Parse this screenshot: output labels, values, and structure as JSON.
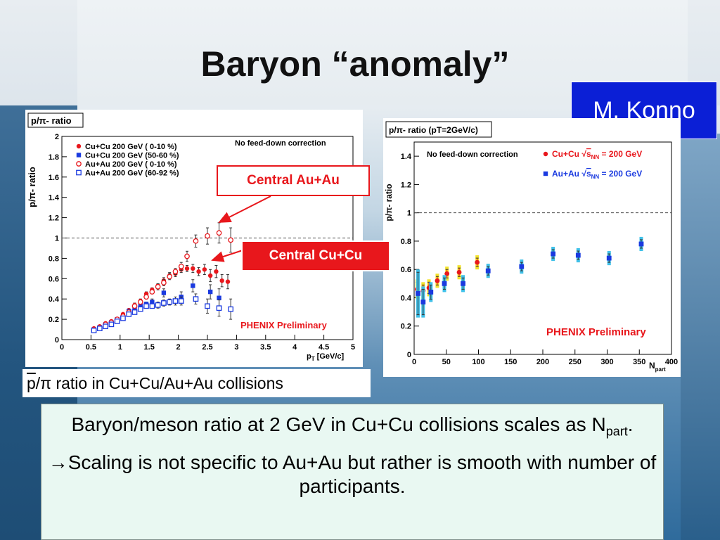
{
  "slide": {
    "title": "Baryon “anomaly”",
    "author": "M. Konno",
    "caption_over": "p",
    "caption_rest": "/π ratio in Cu+Cu/Au+Au collisions",
    "label_au": "Central Au+Au",
    "label_cu": "Central Cu+Cu",
    "text_line1a": "Baryon/meson ratio at 2 GeV in Cu+Cu collisions scales as N",
    "text_line1sub": "part",
    "text_line1end": ".",
    "text_line2arrow": "→",
    "text_line2": "Scaling is not specific to Au+Au but rather is smooth with number of participants."
  },
  "chart_data": [
    {
      "type": "scatter",
      "title": "p/π- ratio",
      "ylabel": "p/π- ratio",
      "xlabel_main": "p",
      "xlabel_sub": "T",
      "xlabel_unit": " [GeV/c]",
      "xlim": [
        0,
        5
      ],
      "ylim": [
        0,
        2
      ],
      "xticks": [
        0,
        0.5,
        1,
        1.5,
        2,
        2.5,
        3,
        3.5,
        4,
        4.5,
        5
      ],
      "xtick_labels": [
        "0",
        "0.5",
        "1",
        "1.5",
        "2",
        "2.5",
        "3",
        "3.5",
        "4",
        "4.5",
        "5"
      ],
      "yticks": [
        0,
        0.2,
        0.4,
        0.6,
        0.8,
        1,
        1.2,
        1.4,
        1.6,
        1.8,
        2
      ],
      "ytick_labels": [
        "0",
        "0.2",
        "0.4",
        "0.6",
        "0.8",
        "1",
        "1.2",
        "1.4",
        "1.6",
        "1.8",
        "2"
      ],
      "reference_line": 1,
      "note": "No feed-down correction",
      "watermark": "PHENIX Preliminary",
      "legend_position": "top-left",
      "series": [
        {
          "name": "Cu+Cu 200 GeV ( 0-10 %)",
          "color": "#e8171c",
          "marker": "filled-circle",
          "x": [
            0.55,
            0.65,
            0.75,
            0.85,
            0.95,
            1.05,
            1.15,
            1.25,
            1.35,
            1.45,
            1.55,
            1.65,
            1.75,
            1.85,
            1.95,
            2.05,
            2.15,
            2.25,
            2.35,
            2.45,
            2.55,
            2.65,
            2.75,
            2.85
          ],
          "y": [
            0.11,
            0.13,
            0.16,
            0.18,
            0.2,
            0.25,
            0.29,
            0.34,
            0.38,
            0.45,
            0.49,
            0.53,
            0.58,
            0.63,
            0.65,
            0.69,
            0.7,
            0.7,
            0.67,
            0.69,
            0.63,
            0.67,
            0.58,
            0.57
          ],
          "err": [
            0.01,
            0.01,
            0.01,
            0.01,
            0.01,
            0.01,
            0.01,
            0.02,
            0.02,
            0.02,
            0.02,
            0.02,
            0.03,
            0.03,
            0.03,
            0.03,
            0.03,
            0.04,
            0.04,
            0.05,
            0.06,
            0.06,
            0.06,
            0.07
          ]
        },
        {
          "name": "Cu+Cu 200 GeV (50-60 %)",
          "color": "#1a3ae0",
          "marker": "filled-square",
          "x": [
            0.55,
            0.65,
            0.75,
            0.85,
            0.95,
            1.05,
            1.15,
            1.25,
            1.35,
            1.45,
            1.55,
            1.75,
            2.05,
            2.25,
            2.55,
            2.7
          ],
          "y": [
            0.1,
            0.12,
            0.15,
            0.17,
            0.2,
            0.22,
            0.28,
            0.3,
            0.33,
            0.35,
            0.37,
            0.46,
            0.42,
            0.53,
            0.47,
            0.41
          ],
          "err": [
            0.01,
            0.01,
            0.01,
            0.01,
            0.01,
            0.01,
            0.02,
            0.02,
            0.02,
            0.02,
            0.03,
            0.04,
            0.05,
            0.06,
            0.07,
            0.09
          ]
        },
        {
          "name": "Au+Au 200 GeV ( 0-10 %)",
          "color": "#e8171c",
          "marker": "open-circle",
          "x": [
            0.55,
            0.65,
            0.75,
            0.85,
            0.95,
            1.05,
            1.15,
            1.25,
            1.35,
            1.45,
            1.55,
            1.65,
            1.75,
            1.85,
            1.95,
            2.05,
            2.15,
            2.3,
            2.5,
            2.7,
            2.9
          ],
          "y": [
            0.1,
            0.12,
            0.15,
            0.17,
            0.2,
            0.23,
            0.27,
            0.33,
            0.37,
            0.42,
            0.47,
            0.52,
            0.56,
            0.62,
            0.67,
            0.72,
            0.82,
            0.97,
            1.02,
            1.05,
            0.98
          ],
          "err": [
            0.01,
            0.01,
            0.01,
            0.01,
            0.01,
            0.01,
            0.02,
            0.02,
            0.02,
            0.02,
            0.02,
            0.03,
            0.03,
            0.03,
            0.03,
            0.04,
            0.05,
            0.06,
            0.08,
            0.1,
            0.12
          ]
        },
        {
          "name": "Au+Au 200 GeV (60-92 %)",
          "color": "#1a3ae0",
          "marker": "open-square",
          "x": [
            0.55,
            0.65,
            0.75,
            0.85,
            0.95,
            1.05,
            1.15,
            1.25,
            1.35,
            1.45,
            1.55,
            1.65,
            1.75,
            1.85,
            1.95,
            2.05,
            2.3,
            2.5,
            2.7,
            2.9
          ],
          "y": [
            0.09,
            0.11,
            0.13,
            0.15,
            0.18,
            0.21,
            0.25,
            0.27,
            0.3,
            0.33,
            0.33,
            0.34,
            0.36,
            0.37,
            0.38,
            0.38,
            0.4,
            0.33,
            0.31,
            0.3
          ],
          "err": [
            0.01,
            0.01,
            0.01,
            0.01,
            0.01,
            0.01,
            0.02,
            0.02,
            0.02,
            0.02,
            0.02,
            0.03,
            0.03,
            0.03,
            0.04,
            0.04,
            0.05,
            0.07,
            0.08,
            0.1
          ]
        }
      ]
    },
    {
      "type": "scatter",
      "title": "p/π- ratio (pT=2GeV/c)",
      "ylabel": "p/π- ratio",
      "xlabel_main": "N",
      "xlabel_sub": "part",
      "xlim": [
        0,
        400
      ],
      "ylim": [
        0,
        1.5
      ],
      "xticks": [
        0,
        50,
        100,
        150,
        200,
        250,
        300,
        350,
        400
      ],
      "xtick_labels": [
        "0",
        "50",
        "100",
        "150",
        "200",
        "250",
        "300",
        "350",
        "400"
      ],
      "yticks": [
        0,
        0.2,
        0.4,
        0.6,
        0.8,
        1,
        1.2,
        1.4
      ],
      "ytick_labels": [
        "0",
        "0.2",
        "0.4",
        "0.6",
        "0.8",
        "1",
        "1.2",
        "1.4"
      ],
      "reference_line": 1,
      "note": "No feed-down correction",
      "watermark": "PHENIX Preliminary",
      "legend_position": "top-right",
      "legend_labels": [
        {
          "pre": "Cu+Cu ",
          "sqrt": "s",
          "sub": "NN",
          "post": " = 200 GeV"
        },
        {
          "pre": "Au+Au ",
          "sqrt": "s",
          "sub": "NN",
          "post": " = 200 GeV"
        }
      ],
      "series": [
        {
          "name": "Cu+Cu",
          "color": "#e8171c",
          "marker": "filled-circle",
          "x": [
            5,
            14,
            23,
            36,
            51,
            70,
            98
          ],
          "y": [
            0.46,
            0.45,
            0.47,
            0.52,
            0.57,
            0.58,
            0.65
          ],
          "err": [
            0.05,
            0.04,
            0.04,
            0.03,
            0.03,
            0.03,
            0.03
          ]
        },
        {
          "name": "Au+Au",
          "color": "#1a3ae0",
          "marker": "filled-square",
          "x": [
            6,
            14,
            26,
            47,
            76,
            115,
            167,
            216,
            255,
            303,
            353
          ],
          "y": [
            0.43,
            0.37,
            0.44,
            0.5,
            0.5,
            0.59,
            0.62,
            0.71,
            0.7,
            0.68,
            0.78
          ],
          "err": [
            0.15,
            0.09,
            0.05,
            0.04,
            0.04,
            0.03,
            0.03,
            0.03,
            0.03,
            0.03,
            0.03
          ]
        }
      ]
    }
  ]
}
